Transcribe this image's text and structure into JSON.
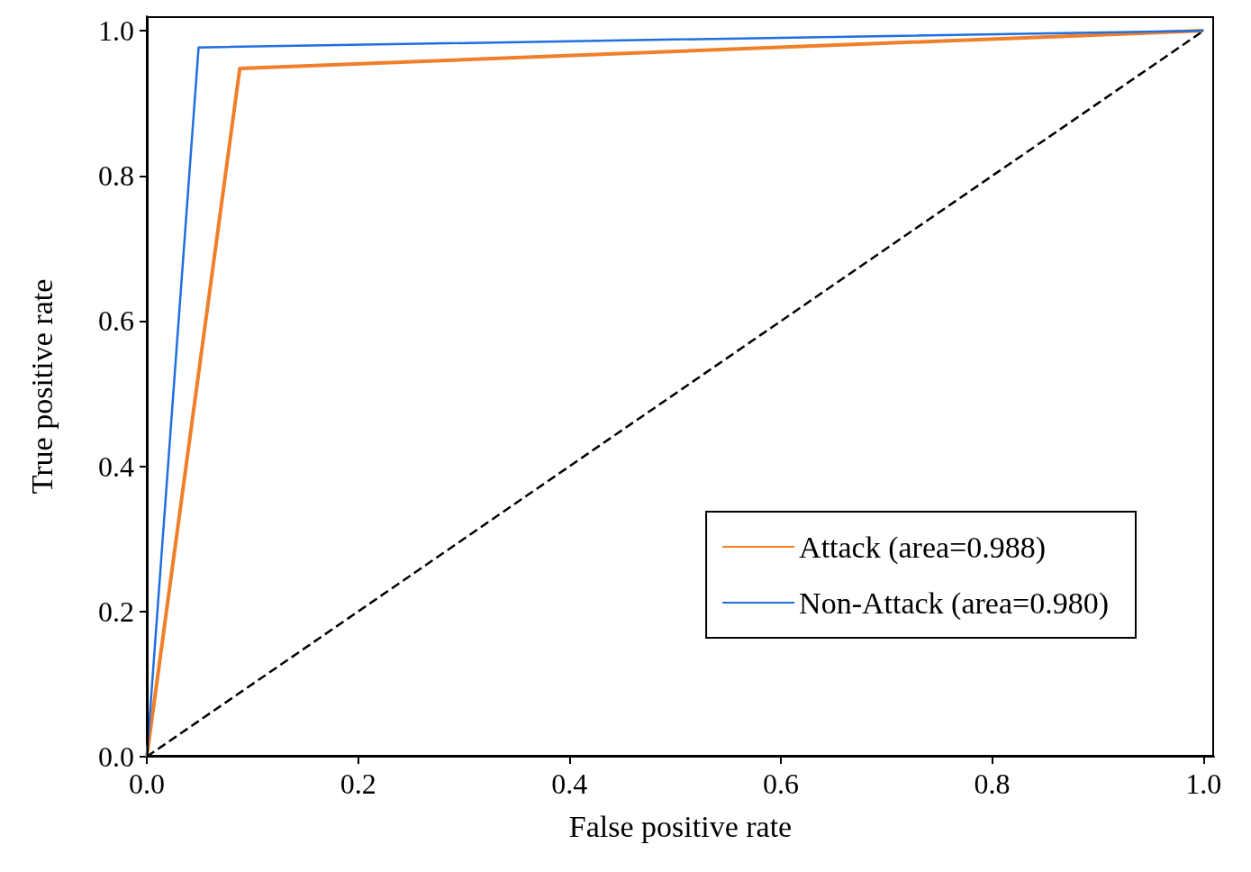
{
  "chart_data": {
    "type": "line",
    "xlabel": "False positive rate",
    "ylabel": "True positive rate",
    "xlim": [
      0,
      1.01
    ],
    "ylim": [
      0,
      1.02
    ],
    "xticks": [
      {
        "value": 0,
        "label": "0.0"
      },
      {
        "value": 0.2,
        "label": "0.2"
      },
      {
        "value": 0.4,
        "label": "0.4"
      },
      {
        "value": 0.6,
        "label": "0.6"
      },
      {
        "value": 0.8,
        "label": "0.8"
      },
      {
        "value": 1,
        "label": "1.0"
      }
    ],
    "yticks": [
      {
        "value": 0,
        "label": "0.0"
      },
      {
        "value": 0.2,
        "label": "0.2"
      },
      {
        "value": 0.4,
        "label": "0.4"
      },
      {
        "value": 0.6,
        "label": "0.6"
      },
      {
        "value": 0.8,
        "label": "0.8"
      },
      {
        "value": 1,
        "label": "1.0"
      }
    ],
    "grid": false,
    "legend": "right",
    "marker": "none",
    "series": [
      {
        "name": "Attack (area=0.988)",
        "color": "#f07f2a",
        "x": [
          0,
          0.088,
          1
        ],
        "values": [
          0,
          0.948,
          1
        ]
      },
      {
        "name": "Non-Attack (area=0.980)",
        "color": "#1f6fe0",
        "x": [
          0,
          0.049,
          1
        ],
        "values": [
          0,
          0.977,
          1
        ]
      },
      {
        "color": "#000000",
        "line_style": "dashed",
        "x": [
          0,
          1
        ],
        "values": [
          0,
          1
        ]
      }
    ]
  }
}
